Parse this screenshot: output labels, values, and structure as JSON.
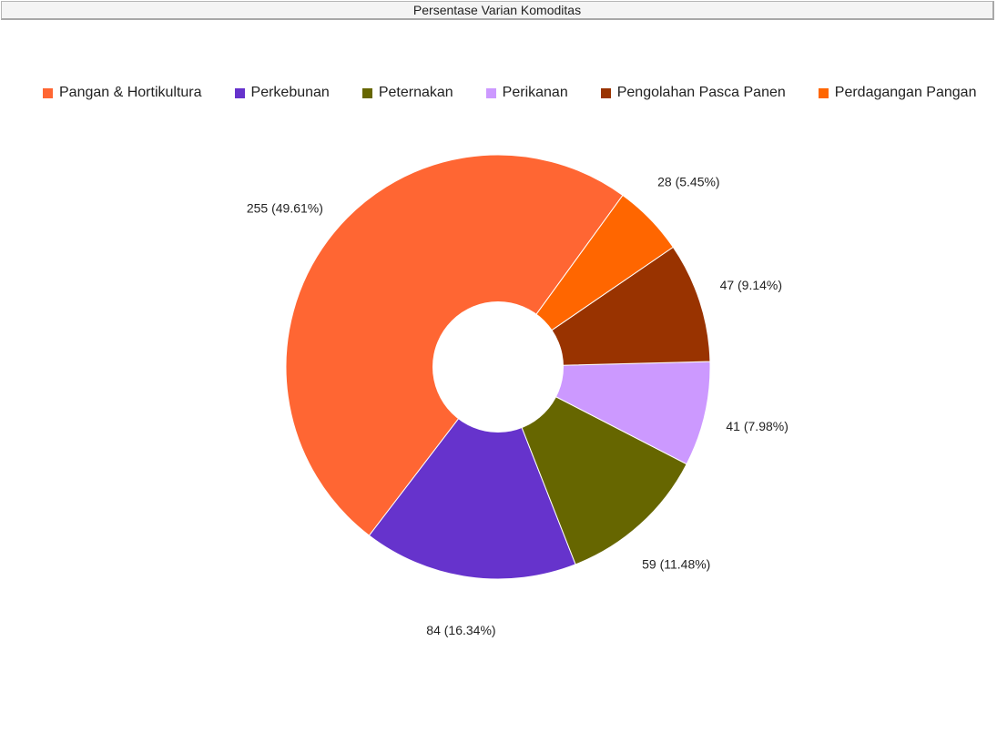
{
  "window": {
    "title": "Persentase Varian Komoditas"
  },
  "chart_data": {
    "type": "pie",
    "donut": true,
    "legend_position": "top",
    "categories": [
      "Pangan & Hortikultura",
      "Perkebunan",
      "Peternakan",
      "Perikanan",
      "Pengolahan Pasca Panen",
      "Perdagangan Pangan"
    ],
    "values": [
      255,
      84,
      59,
      41,
      47,
      28
    ],
    "colors": [
      "#ff6633",
      "#6633cc",
      "#666600",
      "#cc99ff",
      "#993300",
      "#ff6600"
    ],
    "data_labels": [
      "255 (49.61%)",
      "84 (16.34%)",
      "59 (11.48%)",
      "41 (7.98%)",
      "47 (9.14%)",
      "28 (5.45%)"
    ]
  }
}
